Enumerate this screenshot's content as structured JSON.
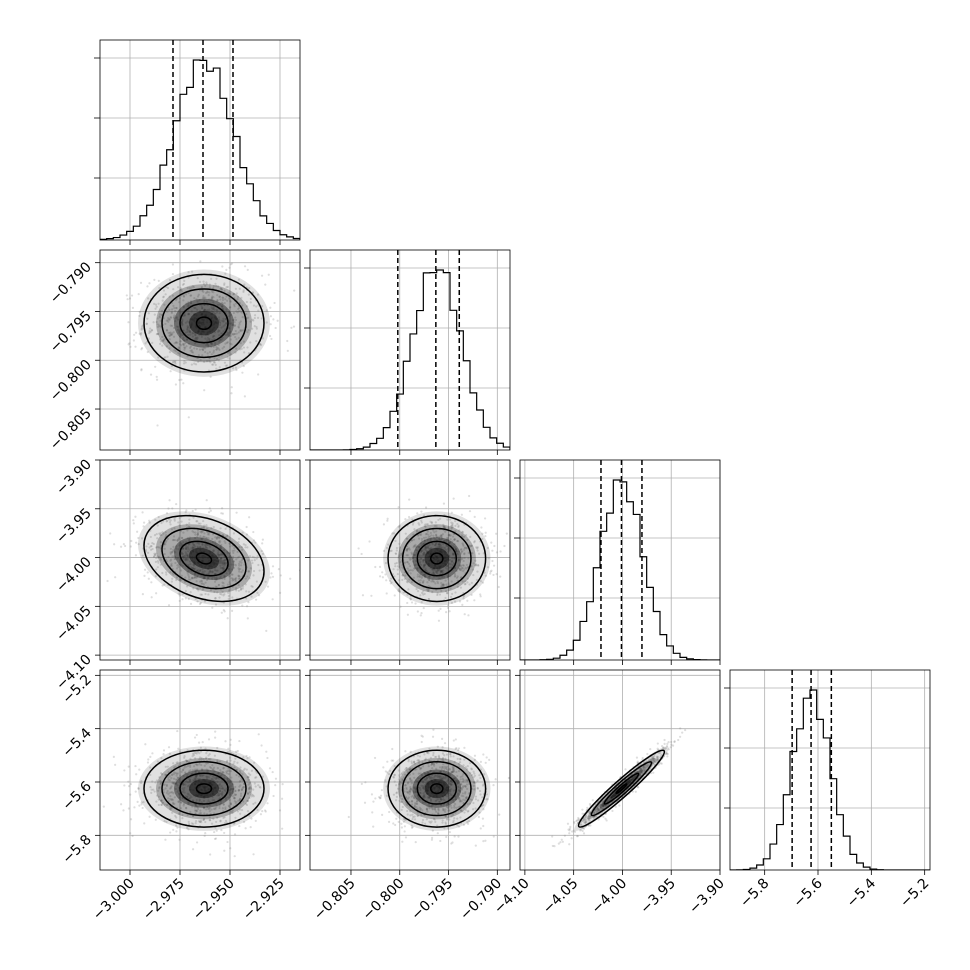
{
  "chart_data": {
    "type": "corner",
    "params": [
      {
        "range": [
          -3.015,
          -2.915
        ],
        "ticks": [
          -3.0,
          -2.975,
          -2.95,
          -2.925
        ],
        "tick_labels": [
          "−3.000",
          "−2.975",
          "−2.950",
          "−2.925"
        ],
        "quantiles": [
          -2.9785,
          -2.9635,
          -2.9485
        ],
        "mean": -2.963,
        "sd": 0.015
      },
      {
        "range": [
          -0.8092,
          -0.7887
        ],
        "ticks": [
          -0.805,
          -0.8,
          -0.795,
          -0.79
        ],
        "tick_labels": [
          "−0.805",
          "−0.800",
          "−0.795",
          "−0.790"
        ],
        "quantiles": [
          -0.8002,
          -0.7963,
          -0.7939
        ],
        "mean": -0.7962,
        "sd": 0.0025
      },
      {
        "range": [
          -4.105,
          -3.9
        ],
        "ticks": [
          -4.1,
          -4.05,
          -4.0,
          -3.95,
          -3.9
        ],
        "tick_labels": [
          "−4.10",
          "−4.05",
          "−4.00",
          "−3.95",
          "−3.90"
        ],
        "quantiles": [
          -4.022,
          -4.001,
          -3.98
        ],
        "mean": -4.001,
        "sd": 0.022
      },
      {
        "range": [
          -5.93,
          -5.18
        ],
        "ticks": [
          -5.8,
          -5.6,
          -5.4,
          -5.2
        ],
        "tick_labels": [
          "−5.8",
          "−5.6",
          "−5.4",
          "−5.2"
        ],
        "quantiles": [
          -5.697,
          -5.626,
          -5.55
        ],
        "mean": -5.625,
        "sd": 0.072
      }
    ],
    "correlations": [
      [
        1,
        0,
        -0.3,
        0
      ],
      [
        0,
        1,
        0,
        0
      ],
      [
        -0.3,
        0,
        1,
        0.96
      ],
      [
        0,
        0,
        0.96,
        1
      ]
    ],
    "grid": true,
    "colors": {
      "line": "#000000",
      "grid": "#b0b0b0",
      "points": "#7a7a7a"
    }
  }
}
